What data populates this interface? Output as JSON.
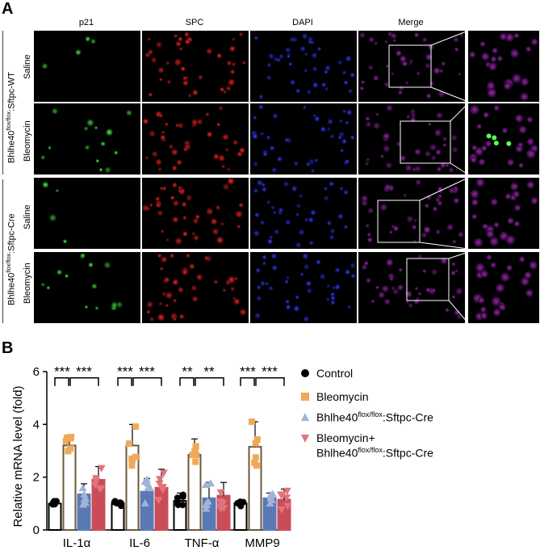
{
  "panelA": {
    "letter": "A",
    "columns": [
      "p21",
      "SPC",
      "DAPI",
      "Merge"
    ],
    "rows": [
      "Saline",
      "Bleomycin",
      "Saline",
      "Bleomycin"
    ],
    "groups": [
      {
        "prefix": "Bhlhe40",
        "sup": "flox/flox",
        "suffix": ":Sftpc-WT"
      },
      {
        "prefix": "Bhlhe40",
        "sup": "flox/flox",
        "suffix": ":Sftpc-Cre"
      }
    ]
  },
  "panelB": {
    "letter": "B",
    "legend": [
      {
        "text": "Control",
        "color": "#000000",
        "marker": "circle"
      },
      {
        "text": "Bleomycin",
        "color": "#f0a95a",
        "marker": "square"
      },
      {
        "text": "Bhlhe40",
        "sup": "flox/flox",
        "after": ":Sftpc-Cre",
        "color": "#9fb4d8",
        "marker": "triangle"
      },
      {
        "text": "Bleomycin+",
        "line2_prefix": "Bhlhe40",
        "line2_sup": "flox/flox",
        "line2_suffix": ":Sftpc-Cre",
        "color": "#e2737a",
        "marker": "triangle-down"
      }
    ]
  },
  "chart_data": {
    "type": "bar",
    "ylabel": "Relative mRNA level (fold)",
    "ylim": [
      0,
      6
    ],
    "yticks": [
      "0",
      "2",
      "4",
      "6"
    ],
    "categories": [
      "IL-1α",
      "IL-6",
      "TNF-α",
      "MMP9"
    ],
    "series": [
      {
        "name": "Control",
        "values": [
          1.0,
          1.0,
          1.1,
          1.0
        ],
        "errors": [
          0.1,
          0.1,
          0.3,
          0.1
        ],
        "color": "#000000"
      },
      {
        "name": "Bleomycin",
        "values": [
          3.2,
          3.2,
          2.85,
          3.15
        ],
        "errors": [
          0.4,
          0.8,
          0.6,
          0.95
        ],
        "color": "#f0a95a"
      },
      {
        "name": "Bhlhe40 flox/flox:Sftpc-Cre",
        "values": [
          1.35,
          1.45,
          1.2,
          1.2
        ],
        "errors": [
          0.4,
          0.5,
          0.6,
          0.2
        ],
        "color": "#5a79b5"
      },
      {
        "name": "Bleomycin+ Bhlhe40 flox/flox:Sftpc-Cre",
        "values": [
          1.9,
          1.6,
          1.3,
          1.15
        ],
        "errors": [
          0.5,
          0.7,
          0.5,
          0.4
        ],
        "color": "#c84d59"
      }
    ],
    "significance": [
      {
        "category": "IL-1α",
        "left": "***",
        "right": "***"
      },
      {
        "category": "IL-6",
        "left": "***",
        "right": "***"
      },
      {
        "category": "TNF-α",
        "left": "**",
        "right": "**"
      },
      {
        "category": "MMP9",
        "left": "***",
        "right": "***"
      }
    ]
  }
}
